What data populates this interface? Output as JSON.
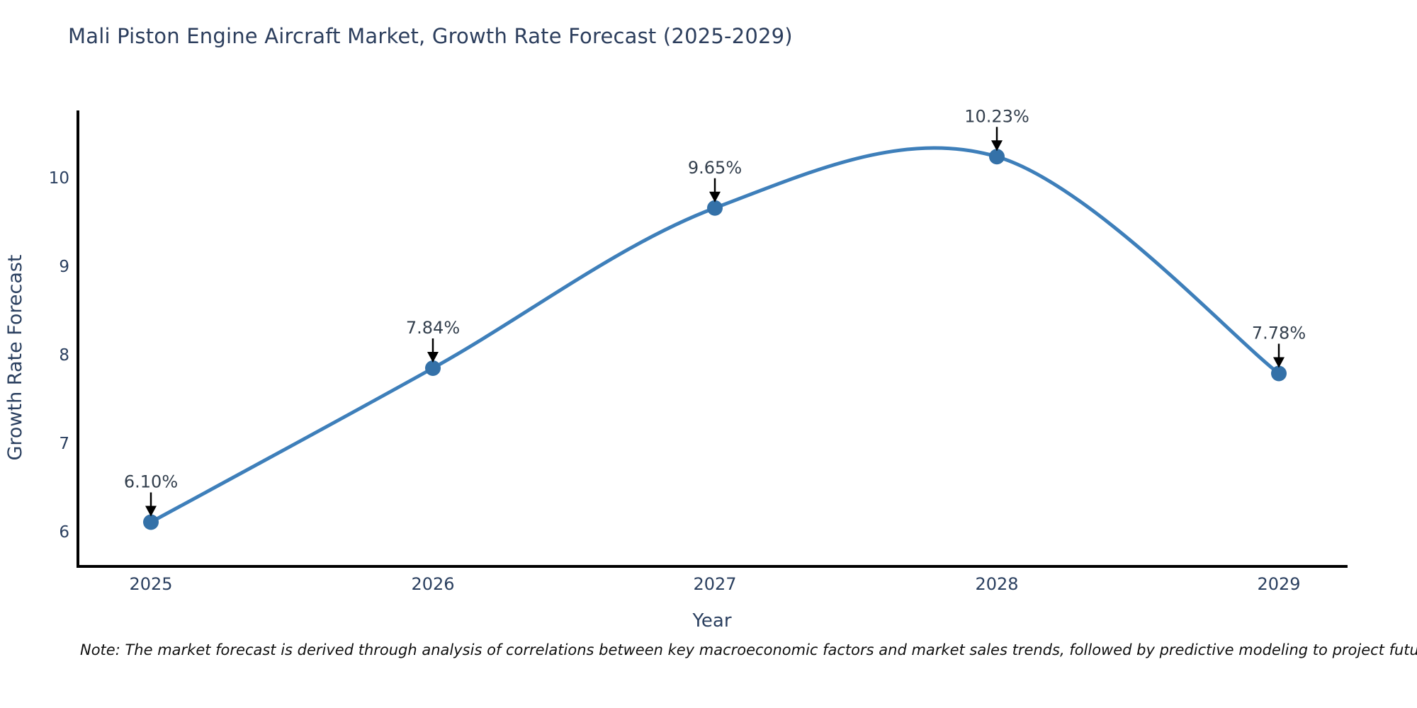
{
  "title": "Mali Piston Engine Aircraft Market, Growth Rate Forecast (2025-2029)",
  "note": "Note: The market forecast is derived through analysis of correlations between key macroeconomic factors and market sales trends, followed by predictive modeling to project future sales",
  "chart_data": {
    "type": "line",
    "curve": "spline",
    "title": "Mali Piston Engine Aircraft Market, Growth Rate Forecast (2025-2029)",
    "x": [
      2025,
      2026,
      2027,
      2028,
      2029
    ],
    "values": [
      6.1,
      7.84,
      9.65,
      10.23,
      7.78
    ],
    "point_labels": [
      "6.10%",
      "7.84%",
      "9.65%",
      "10.23%",
      "7.78%"
    ],
    "xlabel": "Year",
    "ylabel": "Growth Rate Forecast",
    "yticks": [
      6,
      7,
      8,
      9,
      10
    ],
    "ylim": [
      5.6,
      10.74
    ],
    "grid": false,
    "legend": "none",
    "line_color": "#3e7fba",
    "marker_color": "#3471a8",
    "annotation_color": "#333f4d",
    "arrow_color": "#000000",
    "axis_color": "#000000",
    "tick_label_color": "#2a3f5f"
  }
}
